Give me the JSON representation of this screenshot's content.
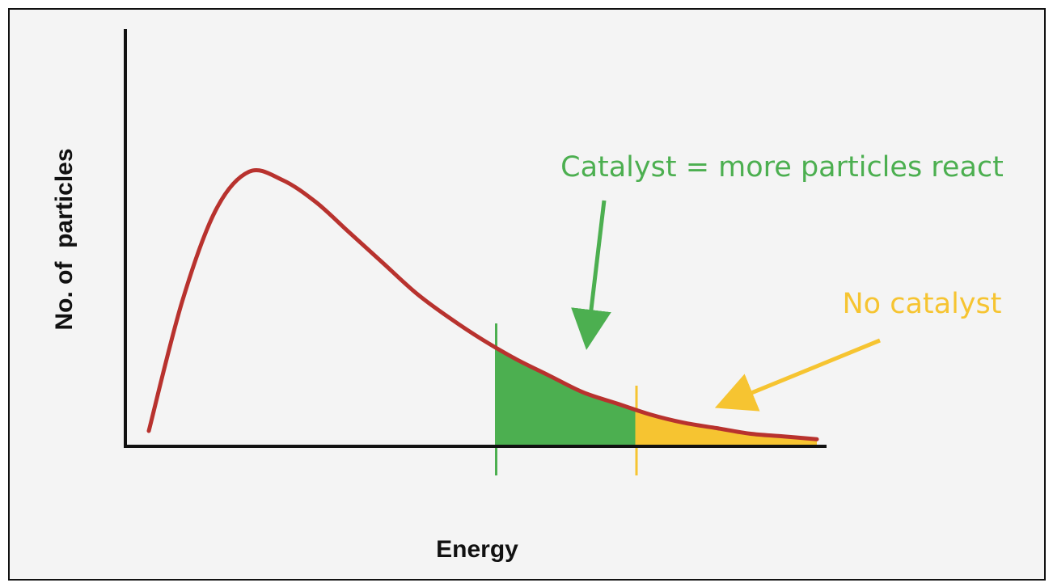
{
  "colors": {
    "background": "#f4f4f4",
    "curve": "#b8322e",
    "catalyst": "#4caf50",
    "no_catalyst": "#f6c431",
    "axis": "#111111"
  },
  "chart_data": {
    "type": "area",
    "title": "",
    "xlabel": "Energy",
    "ylabel": "No. of  particles",
    "grid": false,
    "curve": {
      "name": "",
      "x": [
        0.0,
        0.05,
        0.1,
        0.15,
        0.2,
        0.25,
        0.3,
        0.35,
        0.4,
        0.45,
        0.5,
        0.55,
        0.6,
        0.65,
        0.7,
        0.75,
        0.8,
        0.85,
        0.9,
        0.95,
        1.0
      ],
      "y": [
        0.05,
        0.52,
        0.85,
        0.99,
        0.96,
        0.88,
        0.77,
        0.66,
        0.55,
        0.46,
        0.38,
        0.31,
        0.25,
        0.19,
        0.15,
        0.11,
        0.08,
        0.06,
        0.04,
        0.03,
        0.02
      ]
    },
    "thresholds": [
      {
        "key": "catalyst",
        "x": 0.52
      },
      {
        "key": "no_catalyst",
        "x": 0.73
      }
    ],
    "shaded_regions": [
      {
        "key": "catalyst",
        "x_start": 0.52,
        "x_end": 0.73
      },
      {
        "key": "no_catalyst",
        "x_start": 0.73,
        "x_end": 1.0
      }
    ],
    "annotations": {
      "catalyst": "Catalyst = more particles react",
      "no_catalyst": "No catalyst"
    }
  }
}
